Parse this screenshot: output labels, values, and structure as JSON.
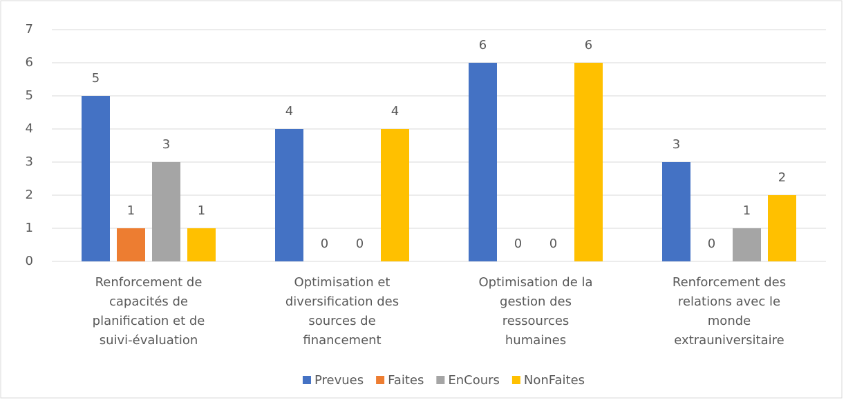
{
  "chart_data": {
    "type": "bar",
    "categories": [
      "Renforcement de capacités de planification et de suivi-évaluation",
      "Optimisation et diversification des sources de financement",
      "Optimisation de la gestion des ressources humaines",
      "Renforcement des relations avec le monde extrauniversitaire"
    ],
    "series": [
      {
        "name": "Prevues",
        "color": "#4472c4",
        "values": [
          5,
          4,
          6,
          3
        ]
      },
      {
        "name": "Faites",
        "color": "#ed7d31",
        "values": [
          1,
          0,
          0,
          0
        ]
      },
      {
        "name": "EnCours",
        "color": "#a5a5a5",
        "values": [
          3,
          0,
          0,
          1
        ]
      },
      {
        "name": "NonFaites",
        "color": "#ffc000",
        "values": [
          1,
          4,
          6,
          2
        ]
      }
    ],
    "ylim": [
      0,
      7
    ],
    "yticks": [
      0,
      1,
      2,
      3,
      4,
      5,
      6,
      7
    ],
    "grid": true,
    "legend": "bottom"
  }
}
